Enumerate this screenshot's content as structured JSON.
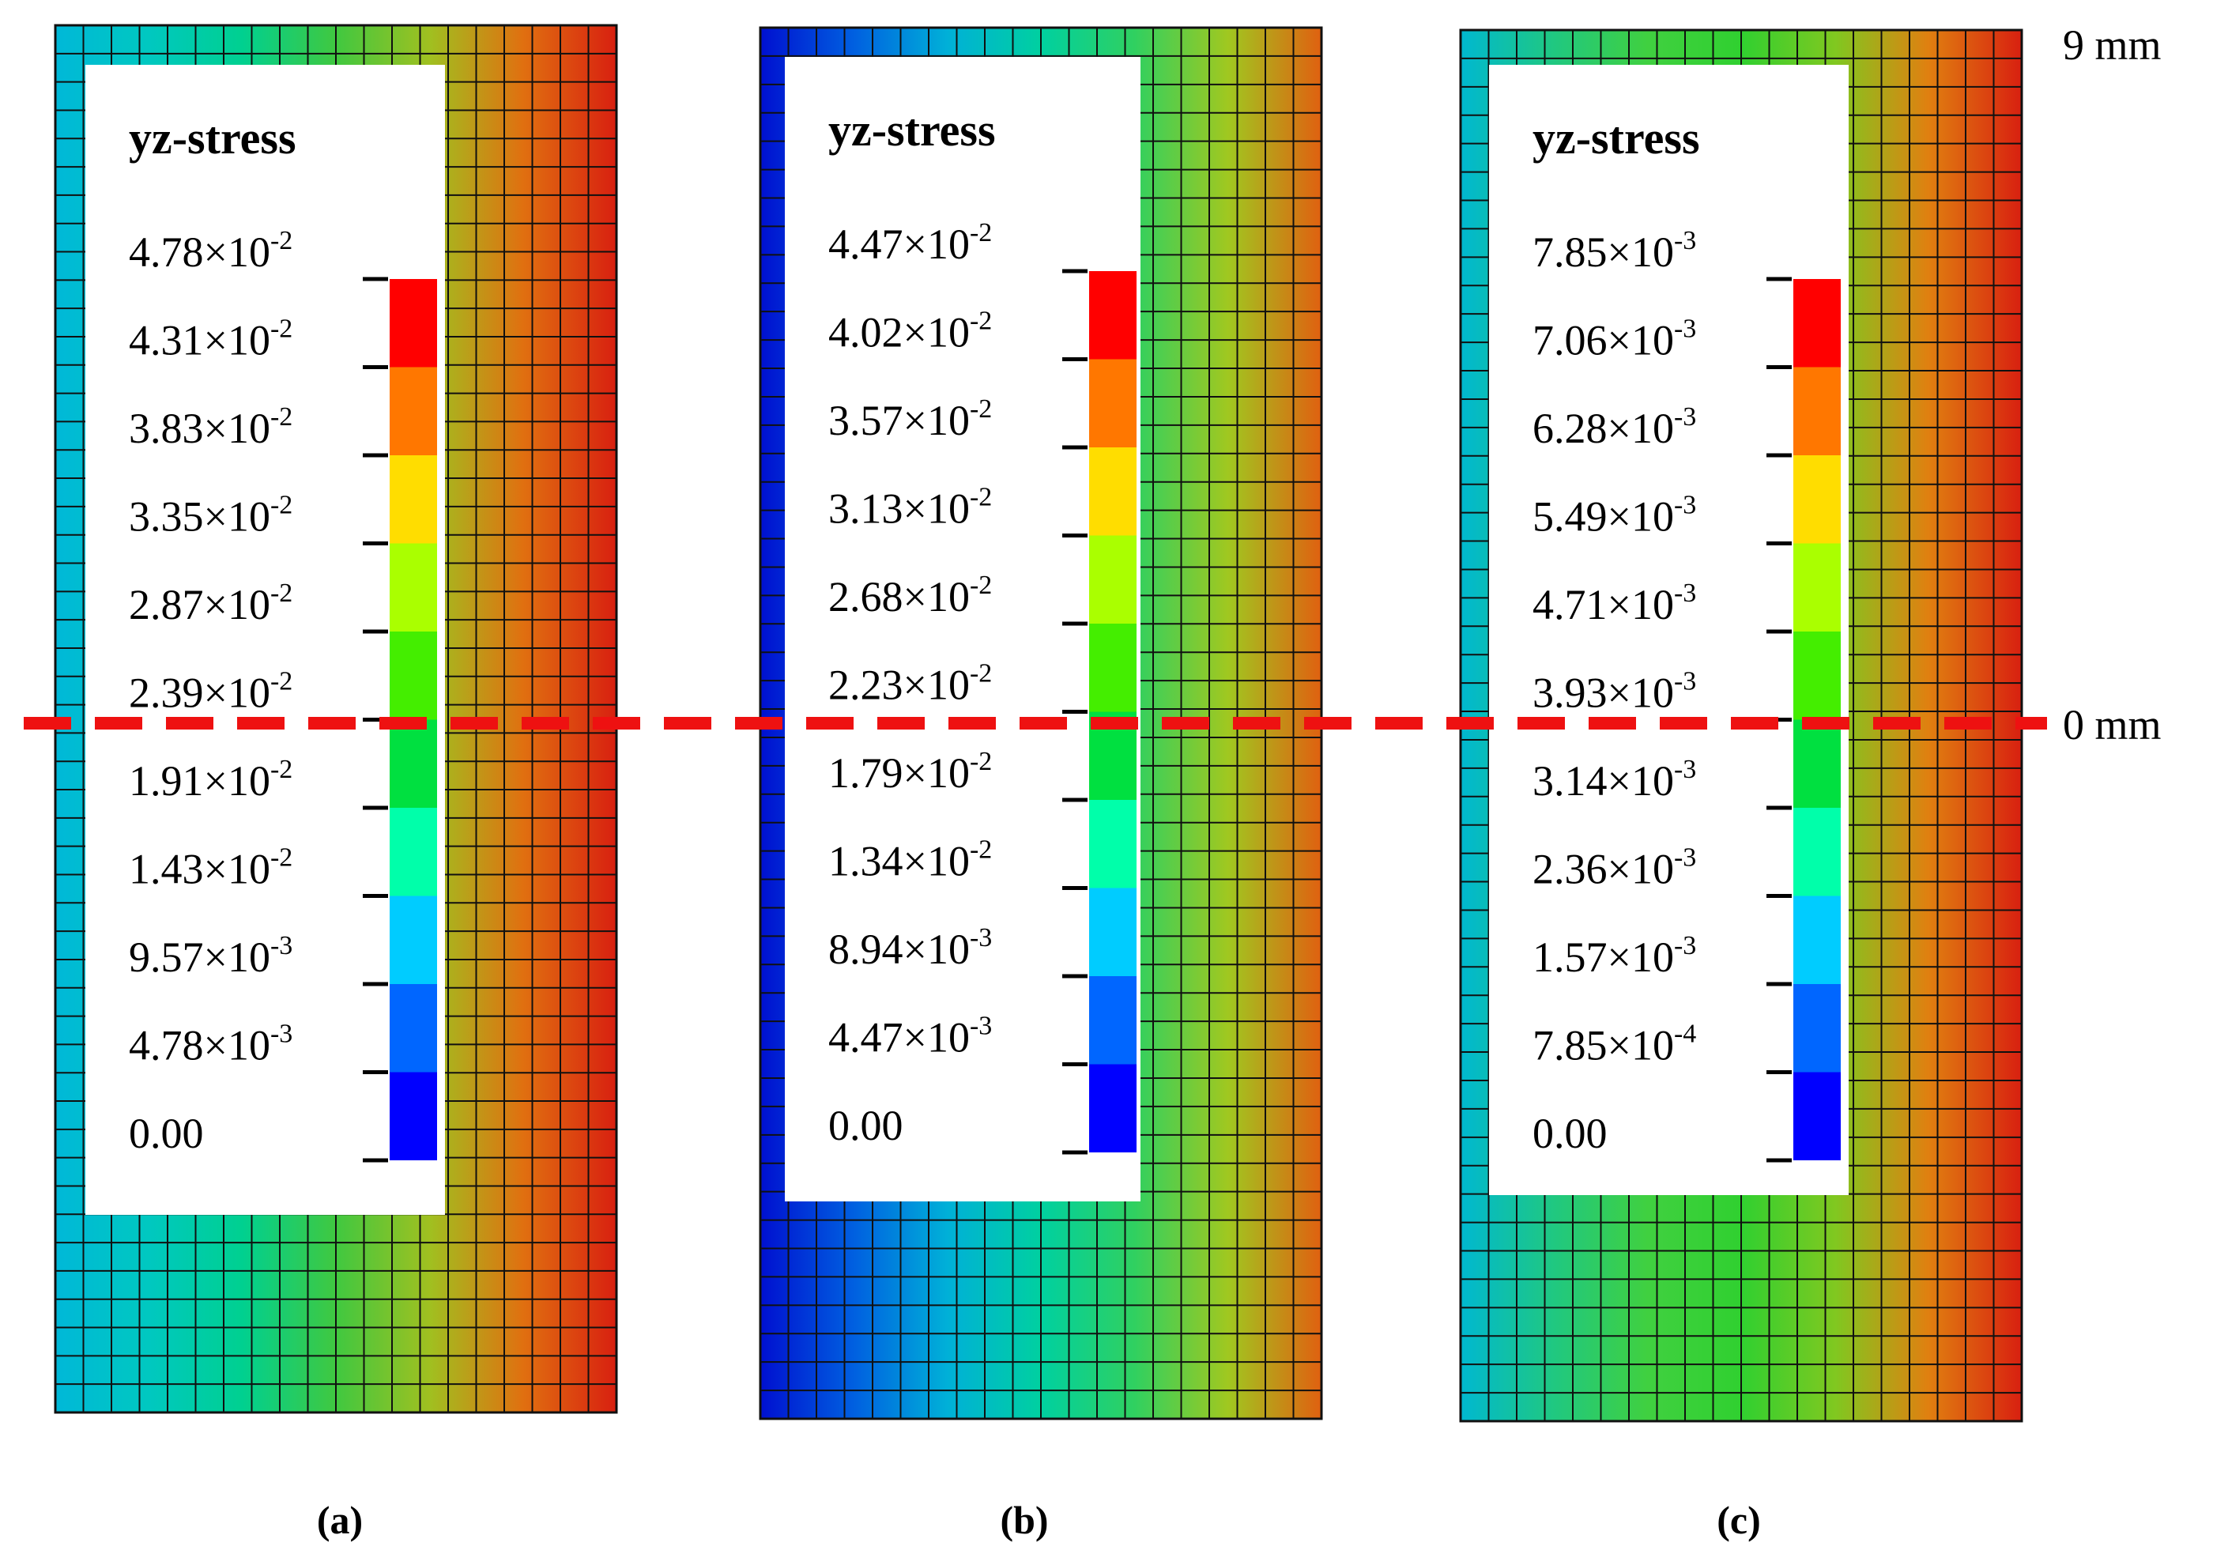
{
  "figure": {
    "description_labels": {
      "top_mark": "9 mm",
      "mid_mark": "0 mm"
    },
    "legend_title": "yz-stress",
    "colormap": [
      "#0000ff",
      "#0066ff",
      "#00ccff",
      "#00ffaa",
      "#00e040",
      "#44ee00",
      "#aaff00",
      "#ffdd00",
      "#ff7700",
      "#ff0000"
    ],
    "panels": [
      {
        "id": "a",
        "caption": "(a)",
        "legend_mantissas": [
          "4.78",
          "4.31",
          "3.83",
          "3.35",
          "2.87",
          "2.39",
          "1.91",
          "1.43",
          "9.57",
          "4.78",
          "0.00"
        ],
        "legend_exponents": [
          "-2",
          "-2",
          "-2",
          "-2",
          "-2",
          "-2",
          "-2",
          "-2",
          "-3",
          "-3",
          ""
        ],
        "background_bands": [
          "#00b8d8",
          "#00c8c0",
          "#00d090",
          "#40c840",
          "#a0c020",
          "#e07010",
          "#d82010"
        ]
      },
      {
        "id": "b",
        "caption": "(b)",
        "legend_mantissas": [
          "4.47",
          "4.02",
          "3.57",
          "3.13",
          "2.68",
          "2.23",
          "1.79",
          "1.34",
          "8.94",
          "4.47",
          "0.00"
        ],
        "legend_exponents": [
          "-2",
          "-2",
          "-2",
          "-2",
          "-2",
          "-2",
          "-2",
          "-2",
          "-3",
          "-3",
          ""
        ],
        "background_bands": [
          "#0010d0",
          "#0060e0",
          "#00b0d8",
          "#00d0a0",
          "#30d060",
          "#a0c820",
          "#e06010"
        ]
      },
      {
        "id": "c",
        "caption": "(c)",
        "legend_mantissas": [
          "7.85",
          "7.06",
          "6.28",
          "5.49",
          "4.71",
          "3.93",
          "3.14",
          "2.36",
          "1.57",
          "7.85",
          "0.00"
        ],
        "legend_exponents": [
          "-3",
          "-3",
          "-3",
          "-3",
          "-3",
          "-3",
          "-3",
          "-3",
          "-3",
          "-4",
          ""
        ],
        "background_bands": [
          "#00b8d0",
          "#20c880",
          "#40d040",
          "#30d030",
          "#80c820",
          "#e08010",
          "#d82010"
        ]
      }
    ]
  }
}
